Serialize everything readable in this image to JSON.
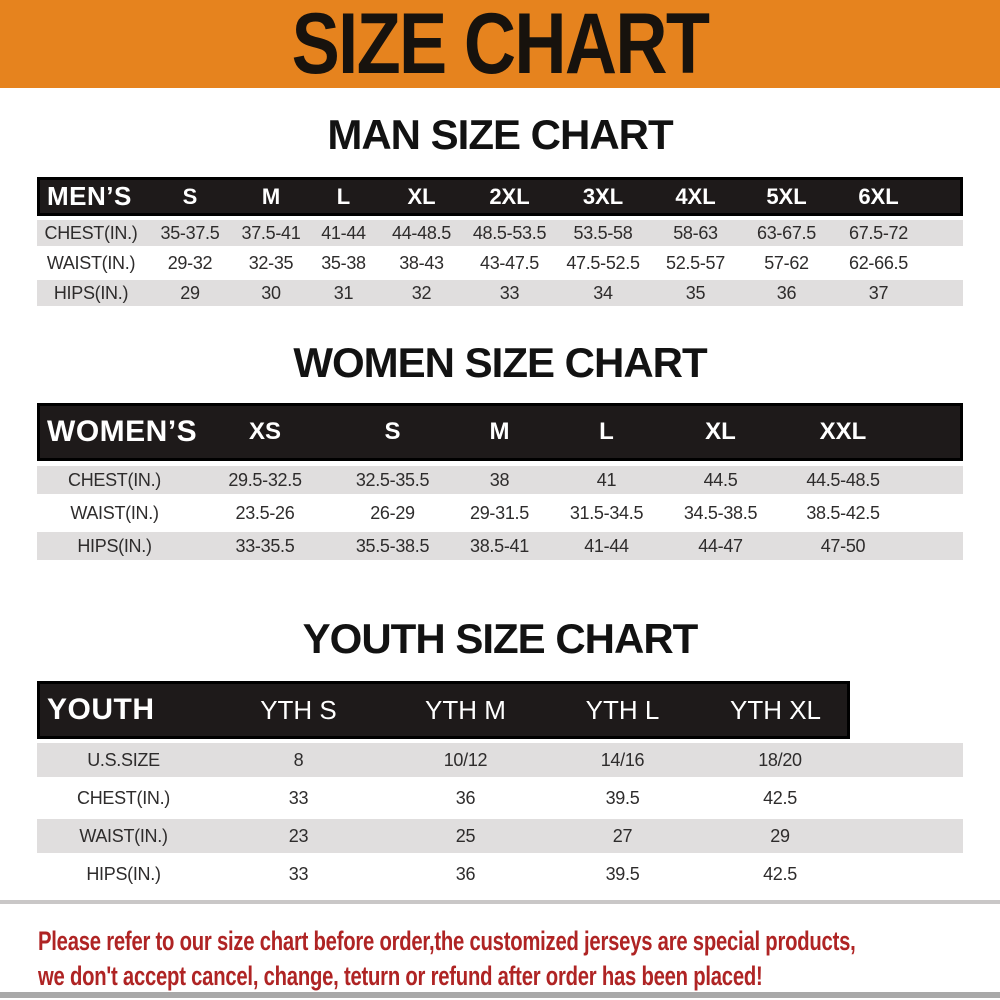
{
  "banner": {
    "title": "SIZE CHART"
  },
  "men": {
    "heading": "MAN SIZE CHART",
    "group_label": "MEN’S",
    "sizes": [
      "S",
      "M",
      "L",
      "XL",
      "2XL",
      "3XL",
      "4XL",
      "5XL",
      "6XL"
    ],
    "rows": [
      {
        "label": "CHEST(IN.)",
        "values": [
          "35-37.5",
          "37.5-41",
          "41-44",
          "44-48.5",
          "48.5-53.5",
          "53.5-58",
          "58-63",
          "63-67.5",
          "67.5-72"
        ]
      },
      {
        "label": "WAIST(IN.)",
        "values": [
          "29-32",
          "32-35",
          "35-38",
          "38-43",
          "43-47.5",
          "47.5-52.5",
          "52.5-57",
          "57-62",
          "62-66.5"
        ]
      },
      {
        "label": "HIPS(IN.)",
        "values": [
          "29",
          "30",
          "31",
          "32",
          "33",
          "34",
          "35",
          "36",
          "37"
        ]
      }
    ]
  },
  "women": {
    "heading": "WOMEN SIZE CHART",
    "group_label": "WOMEN’S",
    "sizes": [
      "XS",
      "S",
      "M",
      "L",
      "XL",
      "XXL"
    ],
    "rows": [
      {
        "label": "CHEST(IN.)",
        "values": [
          "29.5-32.5",
          "32.5-35.5",
          "38",
          "41",
          "44.5",
          "44.5-48.5"
        ]
      },
      {
        "label": "WAIST(IN.)",
        "values": [
          "23.5-26",
          "26-29",
          "29-31.5",
          "31.5-34.5",
          "34.5-38.5",
          "38.5-42.5"
        ]
      },
      {
        "label": "HIPS(IN.)",
        "values": [
          "33-35.5",
          "35.5-38.5",
          "38.5-41",
          "41-44",
          "44-47",
          "47-50"
        ]
      }
    ]
  },
  "youth": {
    "heading": "YOUTH SIZE CHART",
    "group_label": "YOUTH",
    "sizes": [
      "YTH S",
      "YTH M",
      "YTH L",
      "YTH XL"
    ],
    "rows": [
      {
        "label": "U.S.SIZE",
        "values": [
          "8",
          "10/12",
          "14/16",
          "18/20"
        ]
      },
      {
        "label": "CHEST(IN.)",
        "values": [
          "33",
          "36",
          "39.5",
          "42.5"
        ]
      },
      {
        "label": "WAIST(IN.)",
        "values": [
          "23",
          "25",
          "27",
          "29"
        ]
      },
      {
        "label": "HIPS(IN.)",
        "values": [
          "33",
          "36",
          "39.5",
          "42.5"
        ]
      }
    ]
  },
  "footer": {
    "line1": "Please refer to our size chart before order,the customized jerseys are special products,",
    "line2": "we don't accept cancel, change, teturn or refund after order has been placed!"
  },
  "colors": {
    "banner_bg": "#E6831E",
    "banner_text": "#17120D",
    "header_bg": "#1E1A1A",
    "stripe": "#E0DEDE",
    "footer_text": "#AF2424"
  }
}
